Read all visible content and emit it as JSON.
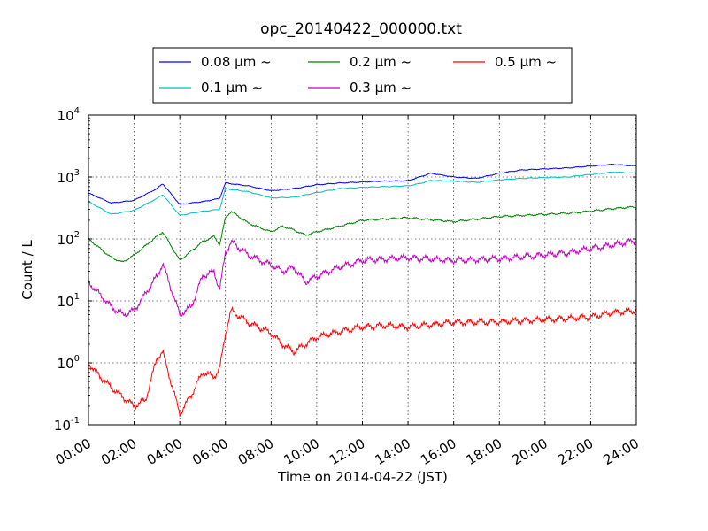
{
  "chart_data": {
    "type": "line",
    "title": "opc_20140422_000000.txt",
    "xlabel": "Time on 2014-04-22 (JST)",
    "ylabel": "Count / L",
    "yscale": "log",
    "xlim": [
      "00:00",
      "24:00"
    ],
    "ylim": [
      0.1,
      10000
    ],
    "x_ticks": [
      "00:00",
      "02:00",
      "04:00",
      "06:00",
      "08:00",
      "10:00",
      "12:00",
      "14:00",
      "16:00",
      "18:00",
      "20:00",
      "22:00",
      "24:00"
    ],
    "y_ticks": [
      {
        "base": "10",
        "exp": "-1"
      },
      {
        "base": "10",
        "exp": "0"
      },
      {
        "base": "10",
        "exp": "1"
      },
      {
        "base": "10",
        "exp": "2"
      },
      {
        "base": "10",
        "exp": "3"
      },
      {
        "base": "10",
        "exp": "4"
      }
    ],
    "grid": true,
    "legend_position": "top, outside plot, 3 columns",
    "series": [
      {
        "name": "0.08 μm ~",
        "color": "#0000ff",
        "x": [
          "00:00",
          "01:00",
          "02:00",
          "03:00",
          "03:15",
          "04:00",
          "05:00",
          "05:45",
          "06:00",
          "07:00",
          "08:00",
          "09:00",
          "10:00",
          "11:00",
          "12:00",
          "13:00",
          "14:00",
          "14:30",
          "15:00",
          "16:00",
          "17:00",
          "18:00",
          "19:00",
          "20:00",
          "21:00",
          "22:00",
          "23:00",
          "24:00"
        ],
        "y": [
          550,
          380,
          420,
          650,
          780,
          360,
          400,
          450,
          800,
          720,
          600,
          650,
          750,
          800,
          830,
          860,
          870,
          1000,
          1150,
          1000,
          950,
          1150,
          1300,
          1350,
          1400,
          1500,
          1600,
          1500
        ]
      },
      {
        "name": "0.1 μm ~",
        "color": "#00bfbf",
        "x": [
          "00:00",
          "01:00",
          "02:00",
          "03:00",
          "03:15",
          "04:00",
          "05:00",
          "05:45",
          "06:00",
          "07:00",
          "08:00",
          "09:00",
          "10:00",
          "11:00",
          "12:00",
          "13:00",
          "14:00",
          "14:30",
          "15:00",
          "16:00",
          "17:00",
          "18:00",
          "19:00",
          "20:00",
          "21:00",
          "22:00",
          "23:00",
          "24:00"
        ],
        "y": [
          400,
          250,
          290,
          450,
          520,
          240,
          280,
          300,
          650,
          580,
          460,
          470,
          560,
          650,
          680,
          700,
          720,
          780,
          880,
          860,
          820,
          900,
          950,
          980,
          1000,
          1100,
          1200,
          1150
        ]
      },
      {
        "name": "0.2 μm ~",
        "color": "#008000",
        "x": [
          "00:00",
          "01:00",
          "01:30",
          "02:00",
          "03:00",
          "03:15",
          "04:00",
          "05:00",
          "05:30",
          "05:45",
          "06:00",
          "06:15",
          "07:00",
          "08:00",
          "08:30",
          "09:00",
          "09:30",
          "10:00",
          "11:00",
          "12:00",
          "14:00",
          "16:00",
          "18:00",
          "20:00",
          "21:00",
          "22:00",
          "23:00",
          "24:00"
        ],
        "y": [
          100,
          50,
          42,
          55,
          110,
          130,
          45,
          90,
          110,
          80,
          220,
          280,
          180,
          130,
          160,
          140,
          115,
          130,
          160,
          200,
          220,
          190,
          230,
          250,
          260,
          280,
          310,
          330
        ]
      },
      {
        "name": "0.3 μm ~",
        "color": "#bf00bf",
        "x": [
          "00:00",
          "01:00",
          "01:30",
          "02:00",
          "03:00",
          "03:15",
          "04:00",
          "04:30",
          "05:00",
          "05:30",
          "05:45",
          "06:00",
          "06:15",
          "07:00",
          "08:00",
          "08:30",
          "09:00",
          "09:30",
          "10:00",
          "11:00",
          "12:00",
          "14:00",
          "16:00",
          "18:00",
          "20:00",
          "21:00",
          "22:00",
          "23:00",
          "24:00"
        ],
        "y": [
          20,
          8,
          6,
          7,
          25,
          40,
          6,
          8,
          25,
          30,
          15,
          60,
          90,
          55,
          38,
          30,
          35,
          20,
          25,
          35,
          45,
          50,
          45,
          48,
          55,
          60,
          70,
          80,
          95
        ]
      },
      {
        "name": "0.5 μm ~",
        "color": "#ff0000",
        "x": [
          "00:00",
          "00:30",
          "01:00",
          "02:00",
          "02:30",
          "03:00",
          "03:15",
          "04:00",
          "04:30",
          "05:00",
          "05:30",
          "05:45",
          "06:00",
          "06:15",
          "06:30",
          "07:00",
          "08:00",
          "08:30",
          "09:00",
          "09:30",
          "10:00",
          "11:00",
          "12:00",
          "13:00",
          "14:00",
          "16:00",
          "18:00",
          "20:00",
          "21:00",
          "22:00",
          "23:00",
          "24:00"
        ],
        "y": [
          1,
          0.6,
          0.4,
          0.2,
          0.25,
          1.2,
          1.5,
          0.15,
          0.3,
          0.7,
          0.6,
          0.8,
          3,
          7,
          6,
          4.5,
          3,
          2,
          1.5,
          2,
          2.6,
          3.2,
          3.8,
          4,
          3.8,
          4.5,
          4.6,
          5,
          5.2,
          5.5,
          6.5,
          7
        ]
      }
    ]
  }
}
